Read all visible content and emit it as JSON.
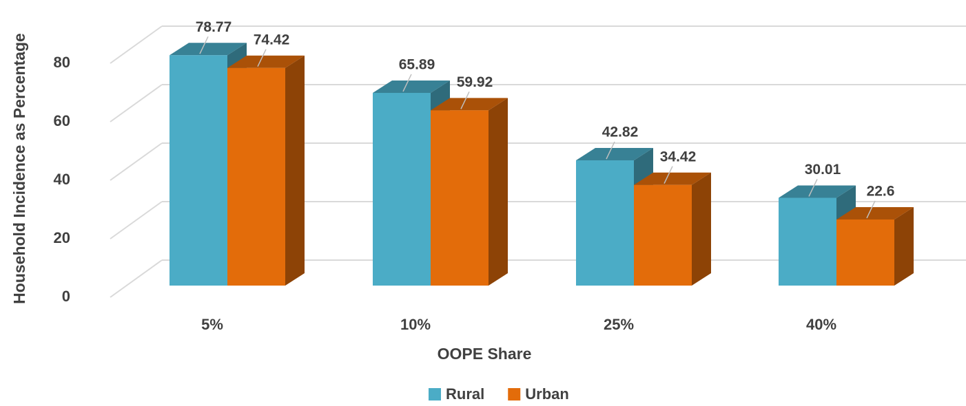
{
  "chart_data": {
    "type": "bar3d",
    "x_label": "OOPE Share",
    "y_label": "Household Incidence as Percentage",
    "categories": [
      "5%",
      "10%",
      "25%",
      "40%"
    ],
    "series": [
      {
        "name": "Rural",
        "color": "#4bacc6",
        "values": [
          78.77,
          65.89,
          42.82,
          30.01
        ]
      },
      {
        "name": "Urban",
        "color": "#e36c0a",
        "values": [
          74.42,
          59.92,
          34.42,
          22.6
        ]
      }
    ],
    "ylim": [
      0,
      80
    ],
    "yticks": [
      0,
      20,
      40,
      60,
      80
    ],
    "grid": true,
    "legend": "bottom"
  }
}
